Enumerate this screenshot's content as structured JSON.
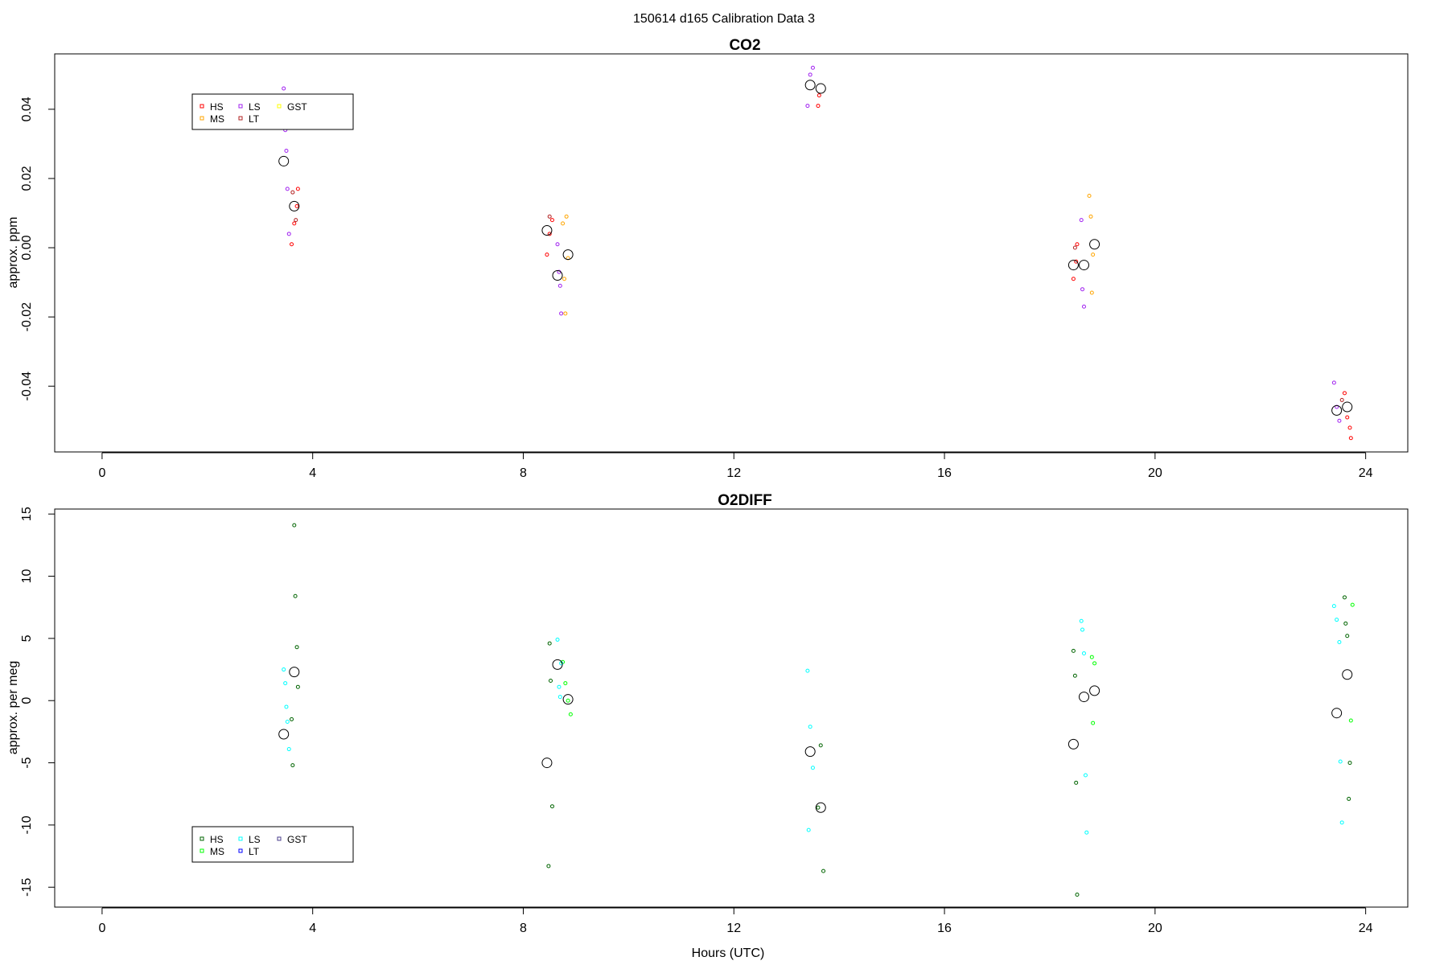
{
  "figure": {
    "title": "150614   d165   Calibration Data 3"
  },
  "colors": {
    "HS_co2": "#ff0000",
    "MS_co2": "#ffa500",
    "LS_co2": "#a020f0",
    "LT_co2": "#b22222",
    "GST_co2": "#ffff00",
    "HS_o2": "#006400",
    "MS_o2": "#00ff00",
    "LS_o2": "#00ffff",
    "LT_o2": "#0000ff",
    "GST_o2": "#483d8b",
    "mean": "#000000"
  },
  "chart_data": [
    {
      "type": "scatter",
      "title": "CO2",
      "xlabel": "",
      "ylabel": "approx. ppm",
      "xlim": [
        -0.9,
        24.8
      ],
      "ylim": [
        -0.059,
        0.056
      ],
      "xticks": [
        0,
        4,
        8,
        12,
        16,
        20,
        24
      ],
      "yticks": [
        -0.04,
        -0.02,
        0.0,
        0.02,
        0.04
      ],
      "ytick_labels": [
        "-0.04",
        "-0.02",
        "0.00",
        "0.02",
        "0.04"
      ],
      "grid": false,
      "legend_position": "top-left",
      "legend": [
        "HS",
        "MS",
        "LS",
        "LT",
        "GST"
      ],
      "series": [
        {
          "name": "HS",
          "x": [
            3.6,
            3.65,
            3.7,
            3.72,
            8.45,
            8.5,
            8.55,
            13.6,
            13.62,
            18.45,
            18.5,
            18.52,
            23.6,
            23.65,
            23.7,
            23.72
          ],
          "y": [
            0.001,
            0.007,
            0.012,
            0.017,
            -0.002,
            0.004,
            0.008,
            0.041,
            0.044,
            -0.009,
            -0.004,
            0.001,
            -0.042,
            -0.049,
            -0.052,
            -0.055
          ]
        },
        {
          "name": "MS",
          "x": [
            8.75,
            8.78,
            8.8,
            8.82,
            8.85,
            18.75,
            18.78,
            18.8,
            18.82
          ],
          "y": [
            0.007,
            -0.009,
            -0.019,
            0.009,
            -0.003,
            0.015,
            0.009,
            -0.013,
            -0.002
          ]
        },
        {
          "name": "LS",
          "x": [
            3.45,
            3.48,
            3.5,
            3.52,
            3.55,
            8.65,
            8.68,
            8.7,
            8.72,
            13.4,
            13.45,
            13.5,
            18.6,
            18.62,
            18.65,
            23.4,
            23.45,
            23.5
          ],
          "y": [
            0.046,
            0.034,
            0.028,
            0.017,
            0.004,
            0.001,
            -0.007,
            -0.011,
            -0.019,
            0.041,
            0.05,
            0.052,
            0.008,
            -0.012,
            -0.017,
            -0.039,
            -0.046,
            -0.05
          ]
        },
        {
          "name": "LT",
          "x": [
            3.62,
            3.68,
            8.5,
            18.48,
            23.55
          ],
          "y": [
            0.016,
            0.008,
            0.009,
            0.0,
            -0.044
          ]
        },
        {
          "name": "mean",
          "x": [
            3.45,
            3.65,
            8.45,
            8.65,
            8.85,
            13.45,
            13.65,
            18.45,
            18.65,
            18.85,
            23.45,
            23.65
          ],
          "y": [
            0.025,
            0.012,
            0.005,
            -0.008,
            -0.002,
            0.047,
            0.046,
            -0.005,
            -0.005,
            0.001,
            -0.047,
            -0.046
          ]
        }
      ]
    },
    {
      "type": "scatter",
      "title": "O2DIFF",
      "xlabel": "Hours (UTC)",
      "ylabel": "approx. per meg",
      "xlim": [
        -0.9,
        24.8
      ],
      "ylim": [
        -16.6,
        15.4
      ],
      "xticks": [
        0,
        4,
        8,
        12,
        16,
        20,
        24
      ],
      "yticks": [
        -15,
        -10,
        -5,
        0,
        5,
        10,
        15
      ],
      "ytick_labels": [
        "-15",
        "-10",
        "-5",
        "0",
        "5",
        "10",
        "15"
      ],
      "grid": false,
      "legend_position": "bottom-left",
      "legend": [
        "HS",
        "MS",
        "LS",
        "LT",
        "GST"
      ],
      "series": [
        {
          "name": "HS",
          "x": [
            3.65,
            3.67,
            3.7,
            3.72,
            3.6,
            3.62,
            8.5,
            8.52,
            8.55,
            8.48,
            13.65,
            13.6,
            13.7,
            18.45,
            18.48,
            18.5,
            18.52,
            23.6,
            23.62,
            23.65,
            23.68,
            23.7
          ],
          "y": [
            14.1,
            8.4,
            4.3,
            1.1,
            -1.5,
            -5.2,
            4.6,
            1.6,
            -8.5,
            -13.3,
            -3.6,
            -8.6,
            -13.7,
            4.0,
            2.0,
            -6.6,
            -15.6,
            8.3,
            6.2,
            5.2,
            -7.9,
            -5.0
          ]
        },
        {
          "name": "MS",
          "x": [
            8.8,
            8.85,
            8.9,
            8.75,
            18.8,
            18.82,
            18.85,
            23.75,
            23.72
          ],
          "y": [
            1.4,
            0.0,
            -1.1,
            3.1,
            3.5,
            -1.8,
            3.0,
            7.7,
            -1.6
          ]
        },
        {
          "name": "LS",
          "x": [
            3.45,
            3.48,
            3.5,
            3.52,
            3.55,
            8.65,
            8.68,
            8.7,
            8.72,
            13.4,
            13.45,
            13.5,
            13.42,
            18.6,
            18.62,
            18.65,
            18.68,
            18.7,
            23.4,
            23.45,
            23.5,
            23.52,
            23.55
          ],
          "y": [
            2.5,
            1.4,
            -0.5,
            -1.7,
            -3.9,
            4.9,
            1.1,
            0.3,
            3.0,
            2.4,
            -2.1,
            -5.4,
            -10.4,
            6.4,
            5.7,
            3.8,
            -6.0,
            -10.6,
            7.6,
            6.5,
            4.7,
            -4.9,
            -9.8
          ]
        },
        {
          "name": "mean",
          "x": [
            3.45,
            3.65,
            8.45,
            8.65,
            8.85,
            13.45,
            13.65,
            18.45,
            18.65,
            18.85,
            23.45,
            23.65
          ],
          "y": [
            -2.7,
            2.3,
            -5.0,
            2.9,
            0.1,
            -4.1,
            -8.6,
            -3.5,
            0.3,
            0.8,
            -1.0,
            2.1
          ]
        }
      ]
    }
  ]
}
